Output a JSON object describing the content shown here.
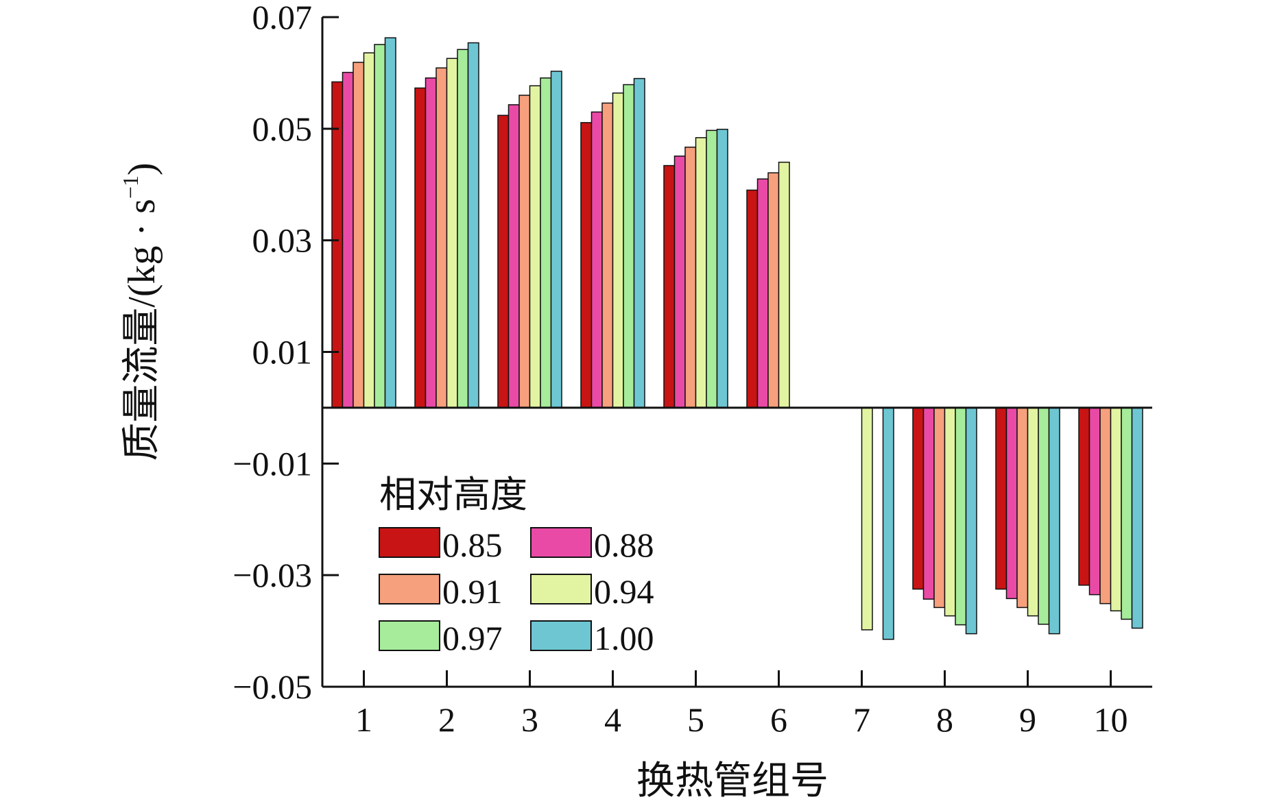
{
  "chart_data": {
    "type": "bar",
    "title": "",
    "xlabel": "换热管组号",
    "ylabel_main": "质量流量/(kg · s",
    "ylabel_sup": "−1",
    "ylabel_close": ")",
    "ylim": [
      -0.05,
      0.07
    ],
    "yticks": [
      0.07,
      0.05,
      0.03,
      0.01,
      -0.01,
      -0.03,
      -0.05
    ],
    "ytick_labels": [
      "0.07",
      "0.05",
      "0.03",
      "0.01",
      "−0.01",
      "−0.03",
      "−0.05"
    ],
    "categories": [
      "1",
      "2",
      "3",
      "4",
      "5",
      "6",
      "7",
      "8",
      "9",
      "10"
    ],
    "legend_title": "相对高度",
    "legend_position": "lower-left",
    "grid": false,
    "series": [
      {
        "name": "0.85",
        "color": "#c81414",
        "values": [
          0.0584,
          0.0573,
          0.0524,
          0.0511,
          0.0434,
          0.039,
          null,
          -0.0325,
          -0.0325,
          -0.0318
        ]
      },
      {
        "name": "0.88",
        "color": "#e94aa6",
        "values": [
          0.0601,
          0.0591,
          0.0543,
          0.053,
          0.0451,
          0.041,
          null,
          -0.0343,
          -0.0342,
          -0.0335
        ]
      },
      {
        "name": "0.91",
        "color": "#f6a07d",
        "values": [
          0.0619,
          0.0609,
          0.056,
          0.0546,
          0.0467,
          0.0421,
          null,
          -0.0358,
          -0.0358,
          -0.0351
        ]
      },
      {
        "name": "0.94",
        "color": "#e2f4a2",
        "values": [
          0.0636,
          0.0626,
          0.0577,
          0.0564,
          0.0484,
          0.044,
          -0.0398,
          -0.0373,
          -0.0373,
          -0.0364
        ]
      },
      {
        "name": "0.97",
        "color": "#a6ec9b",
        "values": [
          0.0651,
          0.0642,
          0.0591,
          0.0579,
          0.0497,
          null,
          null,
          -0.0389,
          -0.0388,
          -0.0379
        ]
      },
      {
        "name": "1.00",
        "color": "#6ec6d3",
        "values": [
          0.0663,
          0.0654,
          0.0603,
          0.059,
          0.0499,
          null,
          -0.0415,
          -0.0405,
          -0.0405,
          -0.0395
        ]
      }
    ]
  }
}
